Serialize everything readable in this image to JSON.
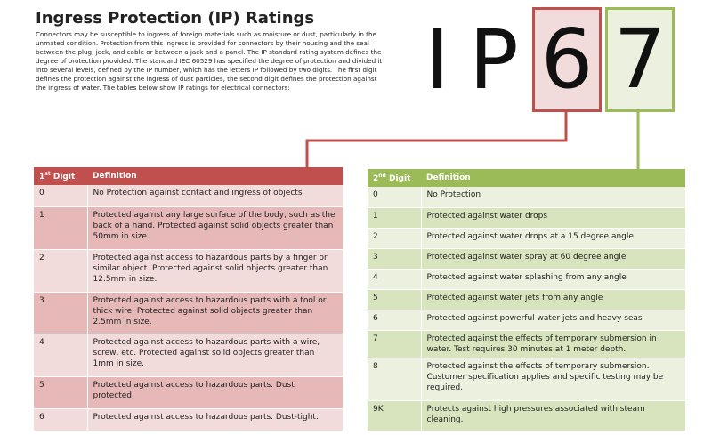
{
  "header": {
    "title": "Ingress Protection (IP) Ratings",
    "intro": "Connectors may be susceptible to ingress of foreign materials such as moisture or dust, particularly in the unmated condition.  Protection from this ingress is provided for connectors by their housing and the seal between the plug, jack, and cable or between a jack and a panel. The IP standard rating system defines the degree of protection provided. The standard IEC 60529 has specified the degree of protection and divided it into several levels, defined by the IP number, which has the letters IP followed by two digits.  The first digit defines the protection against the ingress of dust particles, the second digit defines the protection against the ingress of water. The tables below show IP ratings for electrical connectors:"
  },
  "graphic": {
    "prefix": "IP",
    "first_digit": "6",
    "second_digit": "7"
  },
  "table1": {
    "header": {
      "digit": "1",
      "suffix": "st",
      "label": "Digit",
      "definition": "Definition"
    },
    "rows": [
      [
        "0",
        "No Protection against contact and ingress of objects"
      ],
      [
        "1",
        "Protected against any large surface of the body, such as the back of a hand.  Protected against solid objects greater than 50mm in size."
      ],
      [
        "2",
        "Protected against access to hazardous parts by a finger or similar object.  Protected against solid objects greater than 12.5mm in size."
      ],
      [
        "3",
        "Protected against access to hazardous parts with a tool or thick wire.  Protected against solid objects greater than 2.5mm in size."
      ],
      [
        "4",
        "Protected against access to hazardous parts with a wire, screw, etc.  Protected against solid objects greater than 1mm in size."
      ],
      [
        "5",
        "Protected against access to hazardous parts.  Dust protected."
      ],
      [
        "6",
        "Protected against access to hazardous parts.  Dust-tight."
      ]
    ]
  },
  "table2": {
    "header": {
      "digit": "2",
      "suffix": "nd",
      "label": "Digit",
      "definition": "Definition"
    },
    "rows": [
      [
        "0",
        "No Protection"
      ],
      [
        "1",
        "Protected against water drops"
      ],
      [
        "2",
        "Protected against water drops at a 15 degree angle"
      ],
      [
        "3",
        "Protected against water spray at 60 degree angle"
      ],
      [
        "4",
        "Protected against water splashing from any angle"
      ],
      [
        "5",
        "Protected against water jets from any angle"
      ],
      [
        "6",
        "Protected against powerful water jets and heavy seas"
      ],
      [
        "7",
        "Protected against the effects of temporary submersion in water.  Test requires 30 minutes at 1 meter depth."
      ],
      [
        "8",
        "Protected against the effects of temporary submersion.  Customer specification applies and specific testing may be required."
      ],
      [
        "9K",
        "Protects against high pressures associated with steam cleaning."
      ]
    ]
  }
}
